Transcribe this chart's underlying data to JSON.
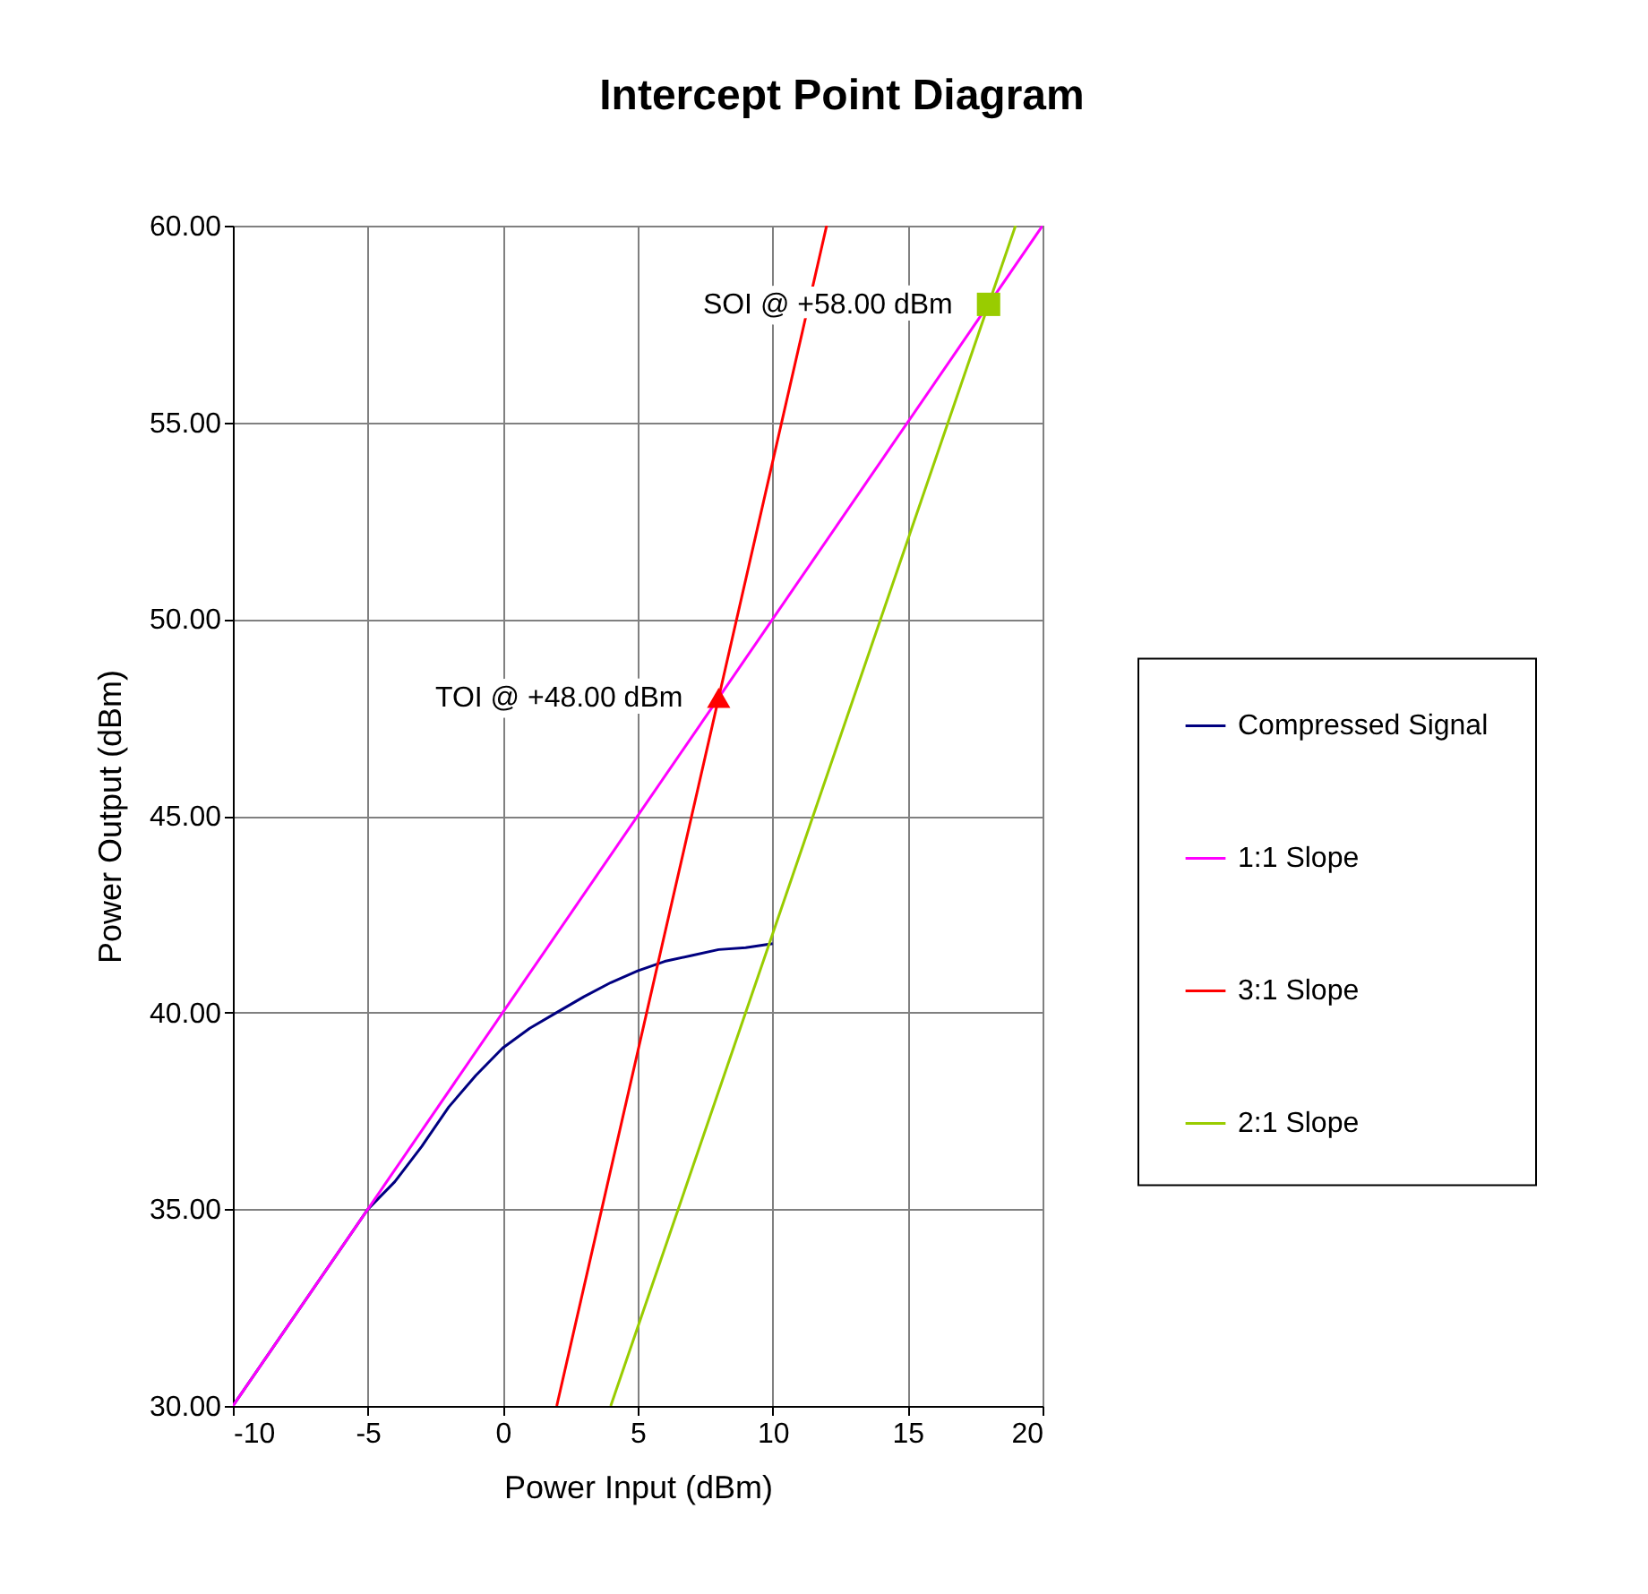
{
  "chart_data": {
    "type": "line",
    "title": "Intercept Point Diagram",
    "xlabel": "Power Input (dBm)",
    "ylabel": "Power Output (dBm)",
    "xlim": [
      -10,
      20
    ],
    "xticks": [
      -10,
      -5,
      0,
      5,
      10,
      15,
      20
    ],
    "ylim": [
      30,
      60
    ],
    "yticks": [
      {
        "value": 30,
        "label": "30.00"
      },
      {
        "value": 35,
        "label": "35.00"
      },
      {
        "value": 40,
        "label": "40.00"
      },
      {
        "value": 45,
        "label": "45.00"
      },
      {
        "value": 50,
        "label": "50.00"
      },
      {
        "value": 55,
        "label": "55.00"
      },
      {
        "value": 60,
        "label": "60.00"
      }
    ],
    "grid": true,
    "legend": "right",
    "series": [
      {
        "name": "Compressed Signal",
        "color": "#000080",
        "x": [
          -10,
          -5,
          -4,
          -3,
          -2,
          -1,
          0,
          1,
          2,
          3,
          4,
          5,
          6,
          7,
          8,
          9,
          10
        ],
        "values": [
          30,
          35,
          35.7,
          36.6,
          37.6,
          38.4,
          39.1,
          39.6,
          40,
          40.4,
          40.76,
          41.06,
          41.3,
          41.45,
          41.6,
          41.65,
          41.75
        ]
      },
      {
        "name": "1:1 Slope",
        "color": "#ff00ff",
        "x": [
          -10,
          20
        ],
        "values": [
          30,
          60
        ]
      },
      {
        "name": "3:1 Slope",
        "color": "#ff0000",
        "x": [
          2,
          12
        ],
        "values": [
          30,
          60
        ]
      },
      {
        "name": "2:1 Slope",
        "color": "#99cc00",
        "x": [
          4,
          19
        ],
        "values": [
          30,
          60
        ]
      },
      {
        "type": "scatter",
        "marker": "triangle",
        "color": "#ff0000",
        "x": [
          8
        ],
        "values": [
          48
        ]
      },
      {
        "type": "scatter",
        "marker": "square",
        "color": "#99cc00",
        "x": [
          18
        ],
        "values": [
          58
        ]
      }
    ],
    "annotations": [
      {
        "text": "TOI @ +48.00 dBm",
        "x": 8,
        "y": 48
      },
      {
        "text": "SOI @ +58.00 dBm",
        "x": 18,
        "y": 58
      }
    ]
  }
}
